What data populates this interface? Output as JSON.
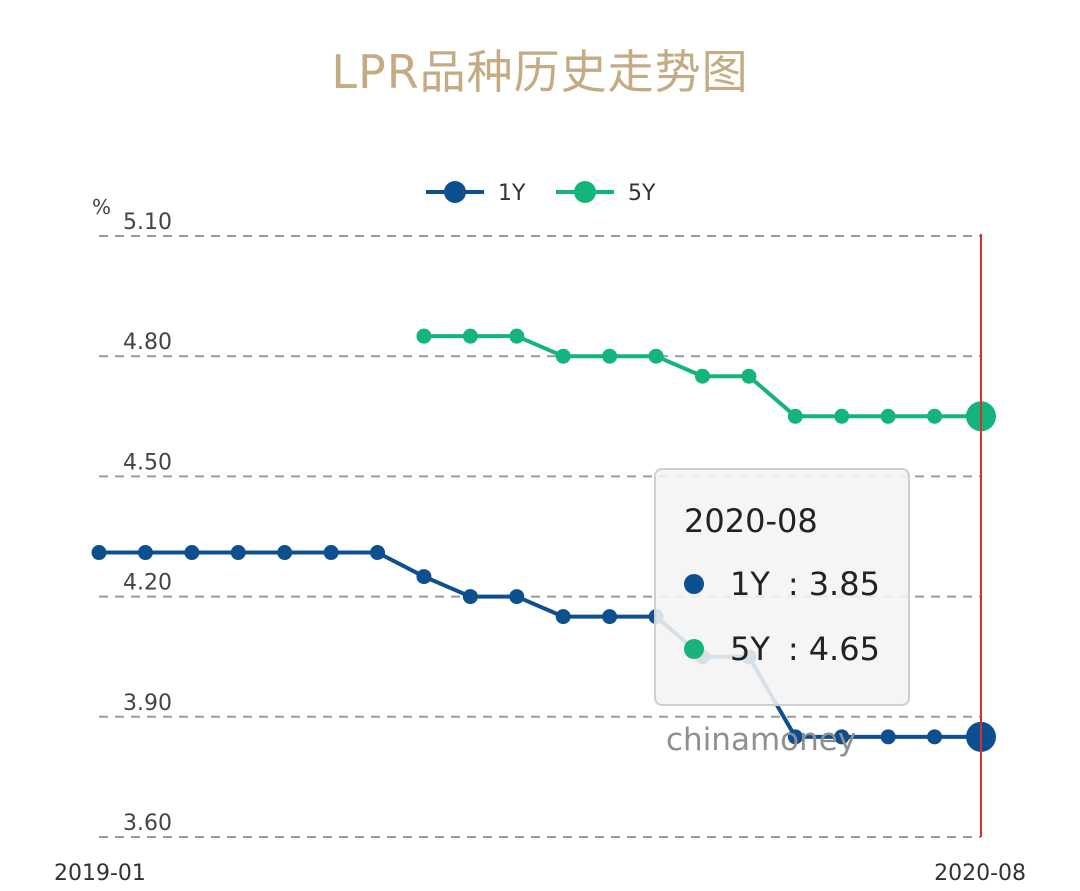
{
  "title": "LPR品种历史走势图",
  "watermark": "chinamoney",
  "tooltip": {
    "date": "2020-08",
    "rows": [
      {
        "name": "1Y",
        "sep": ":",
        "value": "3.85"
      },
      {
        "name": "5Y",
        "sep": ":",
        "value": "4.65"
      }
    ]
  },
  "colors": {
    "1Y": "#0d4f8f",
    "5Y": "#14b47a",
    "title": "#c4ab83",
    "cursor": "#d63030",
    "grid": "#9a9a9a"
  },
  "chart_data": {
    "type": "line",
    "title": "LPR品种历史走势图",
    "unit_label": "%",
    "x_range_labels": [
      "2019-01",
      "2020-08"
    ],
    "x": [
      "2019-01",
      "2019-02",
      "2019-03",
      "2019-04",
      "2019-05",
      "2019-06",
      "2019-07",
      "2019-08",
      "2019-09",
      "2019-10",
      "2019-11",
      "2019-12",
      "2020-01",
      "2020-02",
      "2020-03",
      "2020-04",
      "2020-05",
      "2020-06",
      "2020-07",
      "2020-08"
    ],
    "yticks": [
      "5.10",
      "4.80",
      "4.50",
      "4.20",
      "3.90",
      "3.60"
    ],
    "ylim": [
      3.6,
      5.1
    ],
    "grid": "horizontal-dashed",
    "legend_position": "top-center",
    "cursor_at": "2020-08",
    "series": [
      {
        "name": "1Y",
        "values": [
          4.31,
          4.31,
          4.31,
          4.31,
          4.31,
          4.31,
          4.31,
          4.25,
          4.2,
          4.2,
          4.15,
          4.15,
          4.15,
          4.05,
          4.05,
          3.85,
          3.85,
          3.85,
          3.85,
          3.85
        ]
      },
      {
        "name": "5Y",
        "values": [
          null,
          null,
          null,
          null,
          null,
          null,
          null,
          4.85,
          4.85,
          4.85,
          4.8,
          4.8,
          4.8,
          4.75,
          4.75,
          4.65,
          4.65,
          4.65,
          4.65,
          4.65
        ]
      }
    ]
  }
}
